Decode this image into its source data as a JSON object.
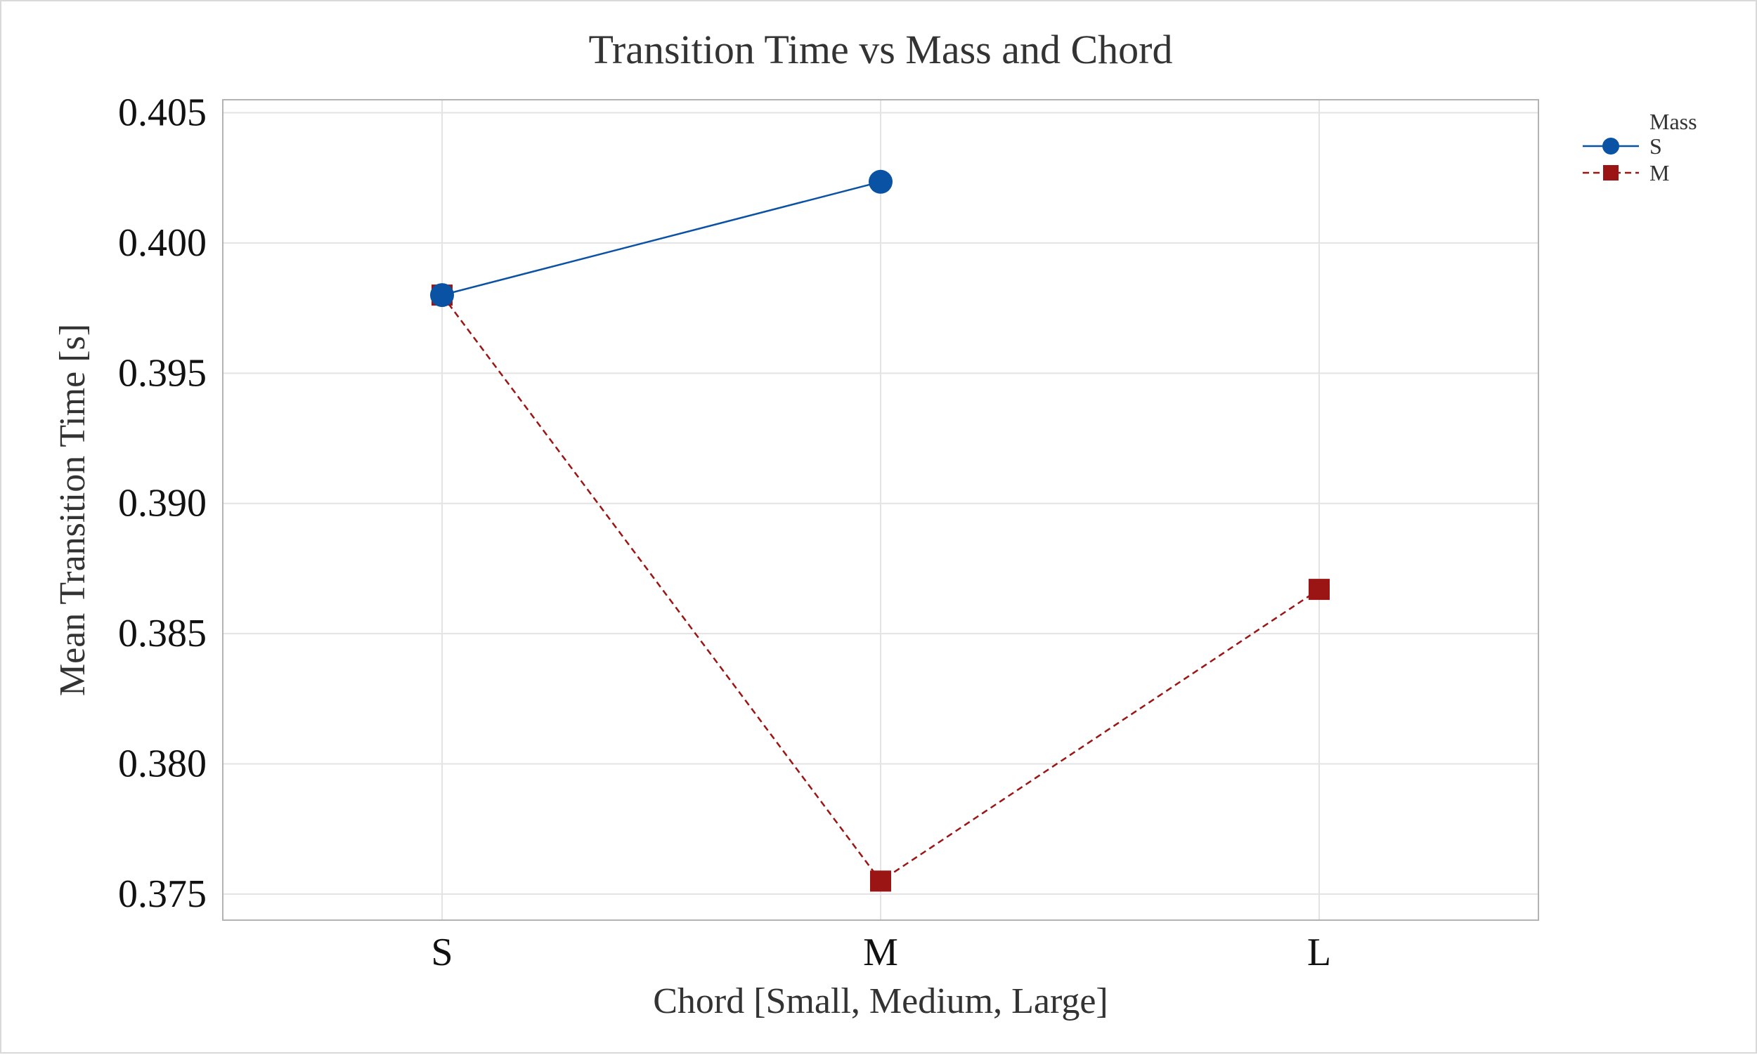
{
  "chart_data": {
    "type": "line",
    "title": "Transition Time vs Mass and Chord",
    "xlabel": "Chord [Small, Medium, Large]",
    "ylabel": "Mean Transition Time [s]",
    "categories": [
      "S",
      "M",
      "L"
    ],
    "ylim": [
      0.374,
      0.4055
    ],
    "yticks": [
      "0.375",
      "0.380",
      "0.385",
      "0.390",
      "0.395",
      "0.400",
      "0.405"
    ],
    "grid": true,
    "legend": {
      "title": "Mass",
      "position": "top-right"
    },
    "series": [
      {
        "name": "S",
        "values": [
          0.398,
          0.40235,
          null
        ],
        "color": "#0a52a3",
        "line": "solid",
        "marker": "circle"
      },
      {
        "name": "M",
        "values": [
          0.398,
          0.3755,
          0.3867
        ],
        "color": "#9b1515",
        "line": "dashed",
        "marker": "square"
      }
    ]
  }
}
